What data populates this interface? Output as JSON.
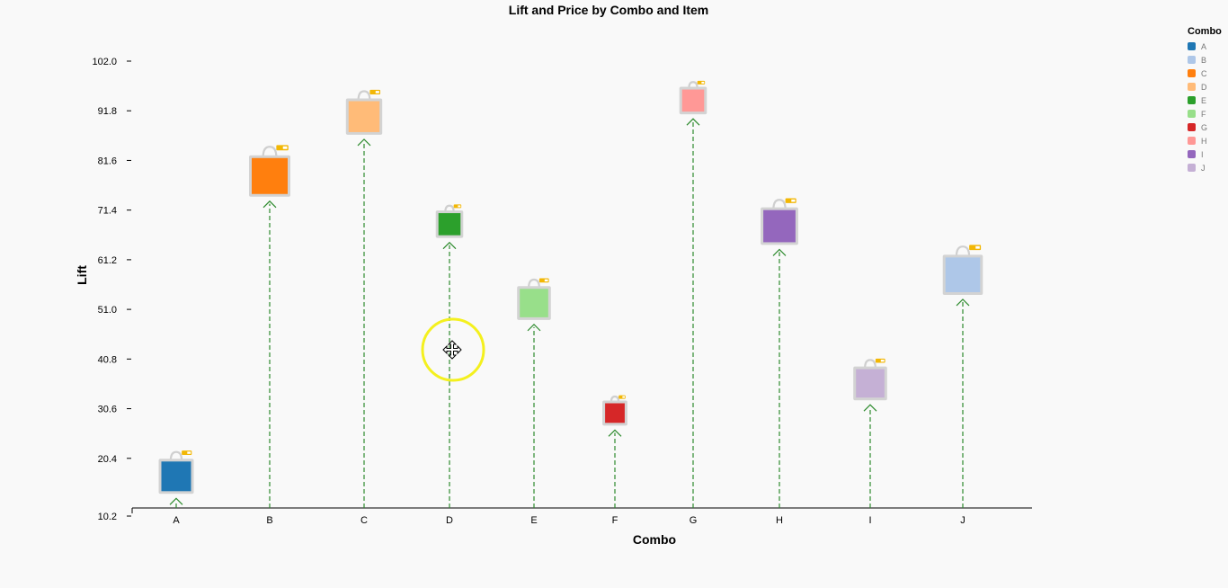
{
  "chart_data": {
    "type": "scatter",
    "title": "Lift and Price by Combo and Item",
    "xlabel": "Combo",
    "ylabel": "Lift",
    "yticks": [
      "10.2",
      "20.4",
      "30.6",
      "40.8",
      "51.0",
      "61.2",
      "71.4",
      "81.6",
      "91.8",
      "102.0"
    ],
    "ylim": [
      10.2,
      102.0
    ],
    "categories": [
      "A",
      "B",
      "C",
      "D",
      "E",
      "F",
      "G",
      "H",
      "I",
      "J"
    ],
    "lift": [
      16.7,
      78.4,
      90.6,
      68.5,
      52.3,
      29.7,
      93.9,
      68.1,
      35.8,
      58.1
    ],
    "price_relative_size": [
      0.75,
      1.0,
      0.8,
      0.45,
      0.7,
      0.35,
      0.45,
      0.85,
      0.7,
      0.95
    ],
    "colors": [
      "#1f77b4",
      "#aec7e8",
      "#ff7f0e",
      "#ffbb78",
      "#2ca02c",
      "#98df8a",
      "#d62728",
      "#ff9896",
      "#9467bd",
      "#c5b0d5"
    ],
    "point_colors": [
      "#1f77b4",
      "#ff7f0e",
      "#ffbb78",
      "#2ca02c",
      "#98df8a",
      "#d62728",
      "#ff9896",
      "#9467bd",
      "#c5b0d5",
      "#aec7e8"
    ],
    "stem_color": "#2e8b2e",
    "marker": "shopping-bag-icon",
    "legend": {
      "title": "Combo",
      "position": "top-right",
      "items": [
        "A",
        "B",
        "C",
        "D",
        "E",
        "F",
        "G",
        "H",
        "I",
        "J"
      ]
    }
  }
}
